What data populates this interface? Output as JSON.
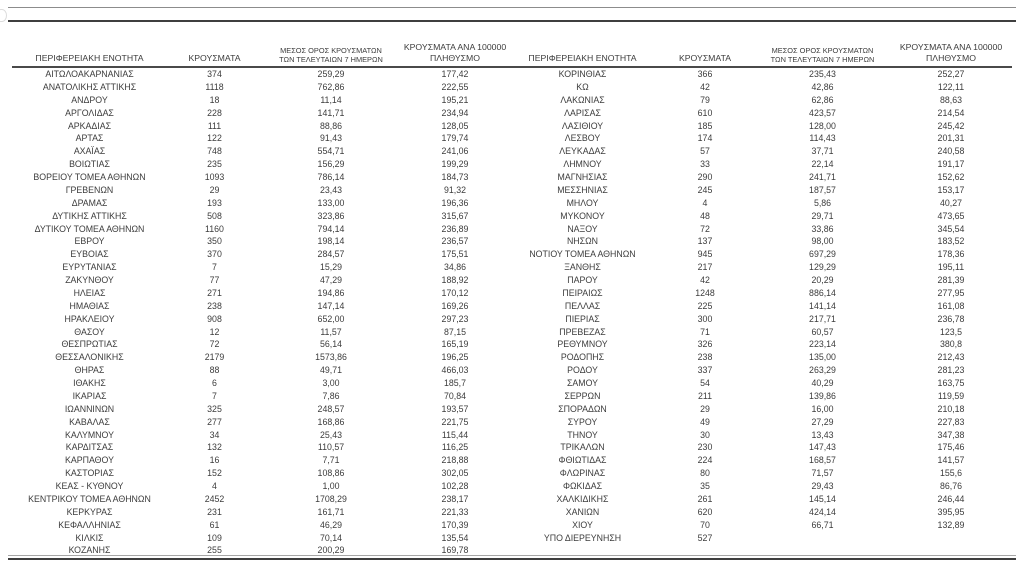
{
  "document": {
    "description": "Daily COVID-19 cases by Greek regional unit, two table groups side by side",
    "colors": {
      "text": "#3c3c3c",
      "rule_dark": "#3f3f3f",
      "rule_gray": "#8c8c8c",
      "background": "#ffffff"
    },
    "columns": {
      "region": "ΠΕΡΙΦΕΡΕΙΑΚΗ ΕΝΟΤΗΤΑ",
      "cases": "ΚΡΟΥΣΜΑΤΑ",
      "avg7_line1": "ΜΕΣΟΣ ΟΡΟΣ ΚΡΟΥΣΜΑΤΩΝ",
      "avg7_line2": "ΤΩΝ ΤΕΛΕΥΤΑΙΩΝ 7 ΗΜΕΡΩΝ",
      "per100k_line1": "ΚΡΟΥΣΜΑΤΑ ΑΝΑ 100000",
      "per100k_line2": "ΠΛΗΘΥΣΜΟ"
    },
    "left_rows": [
      [
        "ΑΙΤΩΛΟΑΚΑΡΝΑΝΙΑΣ",
        "374",
        "259,29",
        "177,42"
      ],
      [
        "ΑΝΑΤΟΛΙΚΗΣ ΑΤΤΙΚΗΣ",
        "1118",
        "762,86",
        "222,55"
      ],
      [
        "ΑΝΔΡΟΥ",
        "18",
        "11,14",
        "195,21"
      ],
      [
        "ΑΡΓΟΛΙΔΑΣ",
        "228",
        "141,71",
        "234,94"
      ],
      [
        "ΑΡΚΑΔΙΑΣ",
        "111",
        "88,86",
        "128,05"
      ],
      [
        "ΑΡΤΑΣ",
        "122",
        "91,43",
        "179,74"
      ],
      [
        "ΑΧΑΪΑΣ",
        "748",
        "554,71",
        "241,06"
      ],
      [
        "ΒΟΙΩΤΙΑΣ",
        "235",
        "156,29",
        "199,29"
      ],
      [
        "ΒΟΡΕΙΟΥ ΤΟΜΕΑ ΑΘΗΝΩΝ",
        "1093",
        "786,14",
        "184,73"
      ],
      [
        "ΓΡΕΒΕΝΩΝ",
        "29",
        "23,43",
        "91,32"
      ],
      [
        "ΔΡΑΜΑΣ",
        "193",
        "133,00",
        "196,36"
      ],
      [
        "ΔΥΤΙΚΗΣ ΑΤΤΙΚΗΣ",
        "508",
        "323,86",
        "315,67"
      ],
      [
        "ΔΥΤΙΚΟΥ ΤΟΜΕΑ ΑΘΗΝΩΝ",
        "1160",
        "794,14",
        "236,89"
      ],
      [
        "ΕΒΡΟΥ",
        "350",
        "198,14",
        "236,57"
      ],
      [
        "ΕΥΒΟΙΑΣ",
        "370",
        "284,57",
        "175,51"
      ],
      [
        "ΕΥΡΥΤΑΝΙΑΣ",
        "7",
        "15,29",
        "34,86"
      ],
      [
        "ΖΑΚΥΝΘΟΥ",
        "77",
        "47,29",
        "188,92"
      ],
      [
        "ΗΛΕΙΑΣ",
        "271",
        "194,86",
        "170,12"
      ],
      [
        "ΗΜΑΘΙΑΣ",
        "238",
        "147,14",
        "169,26"
      ],
      [
        "ΗΡΑΚΛΕΙΟΥ",
        "908",
        "652,00",
        "297,23"
      ],
      [
        "ΘΑΣΟΥ",
        "12",
        "11,57",
        "87,15"
      ],
      [
        "ΘΕΣΠΡΩΤΙΑΣ",
        "72",
        "56,14",
        "165,19"
      ],
      [
        "ΘΕΣΣΑΛΟΝΙΚΗΣ",
        "2179",
        "1573,86",
        "196,25"
      ],
      [
        "ΘΗΡΑΣ",
        "88",
        "49,71",
        "466,03"
      ],
      [
        "ΙΘΑΚΗΣ",
        "6",
        "3,00",
        "185,7"
      ],
      [
        "ΙΚΑΡΙΑΣ",
        "7",
        "7,86",
        "70,84"
      ],
      [
        "ΙΩΑΝΝΙΝΩΝ",
        "325",
        "248,57",
        "193,57"
      ],
      [
        "ΚΑΒΑΛΑΣ",
        "277",
        "168,86",
        "221,75"
      ],
      [
        "ΚΑΛΥΜΝΟΥ",
        "34",
        "25,43",
        "115,44"
      ],
      [
        "ΚΑΡΔΙΤΣΑΣ",
        "132",
        "110,57",
        "116,25"
      ],
      [
        "ΚΑΡΠΑΘΟΥ",
        "16",
        "7,71",
        "218,88"
      ],
      [
        "ΚΑΣΤΟΡΙΑΣ",
        "152",
        "108,86",
        "302,05"
      ],
      [
        "ΚΕΑΣ - ΚΥΘΝΟΥ",
        "4",
        "1,00",
        "102,28"
      ],
      [
        "ΚΕΝΤΡΙΚΟΥ ΤΟΜΕΑ ΑΘΗΝΩΝ",
        "2452",
        "1708,29",
        "238,17"
      ],
      [
        "ΚΕΡΚΥΡΑΣ",
        "231",
        "161,71",
        "221,33"
      ],
      [
        "ΚΕΦΑΛΛΗΝΙΑΣ",
        "61",
        "46,29",
        "170,39"
      ],
      [
        "ΚΙΛΚΙΣ",
        "109",
        "70,14",
        "135,54"
      ],
      [
        "ΚΟΖΑΝΗΣ",
        "255",
        "200,29",
        "169,78"
      ]
    ],
    "right_rows": [
      [
        "ΚΟΡΙΝΘΙΑΣ",
        "366",
        "235,43",
        "252,27"
      ],
      [
        "ΚΩ",
        "42",
        "42,86",
        "122,11"
      ],
      [
        "ΛΑΚΩΝΙΑΣ",
        "79",
        "62,86",
        "88,63"
      ],
      [
        "ΛΑΡΙΣΑΣ",
        "610",
        "423,57",
        "214,54"
      ],
      [
        "ΛΑΣΙΘΙΟΥ",
        "185",
        "128,00",
        "245,42"
      ],
      [
        "ΛΕΣΒΟΥ",
        "174",
        "114,43",
        "201,31"
      ],
      [
        "ΛΕΥΚΑΔΑΣ",
        "57",
        "37,71",
        "240,58"
      ],
      [
        "ΛΗΜΝΟΥ",
        "33",
        "22,14",
        "191,17"
      ],
      [
        "ΜΑΓΝΗΣΙΑΣ",
        "290",
        "241,71",
        "152,62"
      ],
      [
        "ΜΕΣΣΗΝΙΑΣ",
        "245",
        "187,57",
        "153,17"
      ],
      [
        "ΜΗΛΟΥ",
        "4",
        "5,86",
        "40,27"
      ],
      [
        "ΜΥΚΟΝΟΥ",
        "48",
        "29,71",
        "473,65"
      ],
      [
        "ΝΑΞΟΥ",
        "72",
        "33,86",
        "345,54"
      ],
      [
        "ΝΗΣΩΝ",
        "137",
        "98,00",
        "183,52"
      ],
      [
        "ΝΟΤΙΟΥ ΤΟΜΕΑ ΑΘΗΝΩΝ",
        "945",
        "697,29",
        "178,36"
      ],
      [
        "ΞΑΝΘΗΣ",
        "217",
        "129,29",
        "195,11"
      ],
      [
        "ΠΑΡΟΥ",
        "42",
        "20,29",
        "281,39"
      ],
      [
        "ΠΕΙΡΑΙΩΣ",
        "1248",
        "886,14",
        "277,95"
      ],
      [
        "ΠΕΛΛΑΣ",
        "225",
        "141,14",
        "161,08"
      ],
      [
        "ΠΙΕΡΙΑΣ",
        "300",
        "217,71",
        "236,78"
      ],
      [
        "ΠΡΕΒΕΖΑΣ",
        "71",
        "60,57",
        "123,5"
      ],
      [
        "ΡΕΘΥΜΝΟΥ",
        "326",
        "223,14",
        "380,8"
      ],
      [
        "ΡΟΔΟΠΗΣ",
        "238",
        "135,00",
        "212,43"
      ],
      [
        "ΡΟΔΟΥ",
        "337",
        "263,29",
        "281,23"
      ],
      [
        "ΣΑΜΟΥ",
        "54",
        "40,29",
        "163,75"
      ],
      [
        "ΣΕΡΡΩΝ",
        "211",
        "139,86",
        "119,59"
      ],
      [
        "ΣΠΟΡΑΔΩΝ",
        "29",
        "16,00",
        "210,18"
      ],
      [
        "ΣΥΡΟΥ",
        "49",
        "27,29",
        "227,83"
      ],
      [
        "ΤΗΝΟΥ",
        "30",
        "13,43",
        "347,38"
      ],
      [
        "ΤΡΙΚΑΛΩΝ",
        "230",
        "147,43",
        "175,46"
      ],
      [
        "ΦΘΙΩΤΙΔΑΣ",
        "224",
        "168,57",
        "141,57"
      ],
      [
        "ΦΛΩΡΙΝΑΣ",
        "80",
        "71,57",
        "155,6"
      ],
      [
        "ΦΩΚΙΔΑΣ",
        "35",
        "29,43",
        "86,76"
      ],
      [
        "ΧΑΛΚΙΔΙΚΗΣ",
        "261",
        "145,14",
        "246,44"
      ],
      [
        "ΧΑΝΙΩΝ",
        "620",
        "424,14",
        "395,95"
      ],
      [
        "ΧΙΟΥ",
        "70",
        "66,71",
        "132,89"
      ],
      [
        "ΥΠΟ ΔΙΕΡΕΥΝΗΣΗ",
        "527",
        "",
        ""
      ]
    ]
  }
}
